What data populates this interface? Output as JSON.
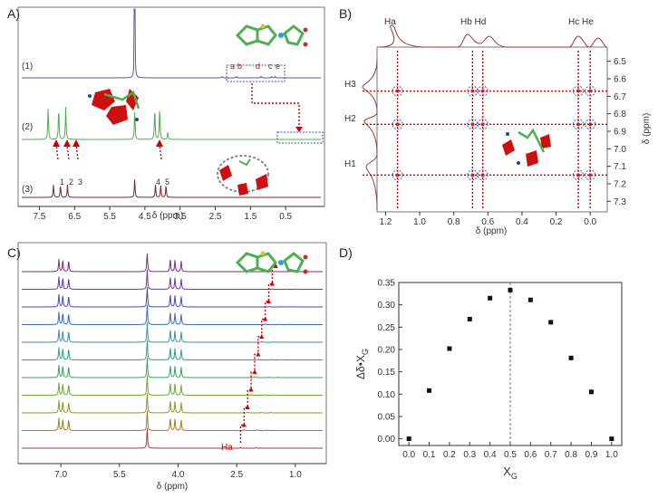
{
  "chart_data": [
    {
      "panel": "A)",
      "type": "line",
      "title": "",
      "xlabel": "δ (ppm)",
      "xlim": [
        8.0,
        -0.5
      ],
      "x_ticks": [
        "7.5",
        "6.5",
        "5.5",
        "4.5",
        "3.5",
        "2.5",
        "1.5",
        "0.5"
      ],
      "x_tick_values": [
        7.5,
        6.5,
        5.5,
        4.5,
        3.5,
        2.5,
        1.5,
        0.5
      ],
      "x_ticks_extra": [
        "7.0",
        "6.0",
        "5.0",
        "4.0",
        "3.0",
        "2.0",
        "1.0",
        "0.0"
      ],
      "spectra": [
        {
          "name": "(1)",
          "color": "#5a5aa0",
          "peaks": [
            {
              "x": 4.79,
              "h": 1.0
            },
            {
              "x": 2.3,
              "h": 0.02
            },
            {
              "x": 1.9,
              "h": 0.02
            },
            {
              "x": 1.2,
              "h": 0.02
            },
            {
              "x": 0.9,
              "h": 0.02
            },
            {
              "x": 0.8,
              "h": 0.02
            }
          ]
        },
        {
          "name": "(2)",
          "color": "#4caf50",
          "peaks": [
            {
              "x": 7.25,
              "h": 0.45
            },
            {
              "x": 6.95,
              "h": 0.45
            },
            {
              "x": 6.75,
              "h": 0.45
            },
            {
              "x": 4.79,
              "h": 0.4
            },
            {
              "x": 4.22,
              "h": 0.45
            },
            {
              "x": 4.08,
              "h": 0.45
            },
            {
              "x": 3.85,
              "h": 0.1
            }
          ]
        },
        {
          "name": "(3)",
          "color": "#7a2a2a",
          "peaks": [
            {
              "x": 7.1,
              "h": 0.2
            },
            {
              "x": 6.9,
              "h": 0.2
            },
            {
              "x": 6.7,
              "h": 0.2
            },
            {
              "x": 4.79,
              "h": 0.3
            },
            {
              "x": 4.2,
              "h": 0.2
            },
            {
              "x": 4.05,
              "h": 0.2
            },
            {
              "x": 3.9,
              "h": 0.2
            }
          ]
        }
      ],
      "annotations": [
        "a",
        "b",
        "d",
        "c",
        "e",
        "1",
        "2",
        "3",
        "4",
        "5"
      ]
    },
    {
      "panel": "B)",
      "type": "heatmap",
      "xlabel": "δ (ppm)",
      "ylabel": "δ (ppm)",
      "xlim": [
        1.25,
        -0.1
      ],
      "ylim": [
        6.45,
        7.35
      ],
      "x_ticks": [
        "1.2",
        "1.0",
        "0.8",
        "0.6",
        "0.4",
        "0.2",
        "0.0"
      ],
      "x_tick_values": [
        1.2,
        1.0,
        0.8,
        0.6,
        0.4,
        0.2,
        0.0
      ],
      "y_ticks": [
        "6.5",
        "6.6",
        "6.7",
        "6.8",
        "6.9",
        "7.0",
        "7.1",
        "7.2",
        "7.3"
      ],
      "y_tick_values": [
        6.5,
        6.6,
        6.7,
        6.8,
        6.9,
        7.0,
        7.1,
        7.2,
        7.3
      ],
      "top_labels": [
        "Ha",
        "Hb Hd",
        "Hc He"
      ],
      "top_label_sub": [
        [
          "a"
        ],
        [
          "b",
          "d"
        ],
        [
          "c",
          "e"
        ]
      ],
      "left_labels": [
        "H3",
        "H2",
        "H1"
      ],
      "cross_peaks_x": [
        1.13,
        0.69,
        0.63,
        0.07,
        0.0
      ],
      "cross_peaks_y": [
        6.67,
        6.86,
        7.15
      ]
    },
    {
      "panel": "C)",
      "type": "line",
      "xlabel": "δ (ppm)",
      "xlim": [
        8.0,
        0.3
      ],
      "x_ticks": [
        "7.0",
        "5.5",
        "4.0",
        "2.5",
        "1.0"
      ],
      "x_tick_values": [
        7.0,
        5.5,
        4.0,
        2.5,
        1.0
      ],
      "n_traces": 11,
      "annotation": "Ha",
      "trace_colors": [
        "#7b2a7b",
        "#6a3a9a",
        "#4a4aa8",
        "#3b6bb8",
        "#3b8ea6",
        "#2f9c8a",
        "#3fa05a",
        "#6aa838",
        "#8a9a2a",
        "#a07a2a",
        "#a83a3a"
      ]
    },
    {
      "panel": "D)",
      "type": "scatter",
      "title": "",
      "xlabel": "X",
      "xlabel_sub": "G",
      "ylabel": "Δδ•X",
      "ylabel_sub": "G",
      "x": [
        0.0,
        0.1,
        0.2,
        0.3,
        0.4,
        0.5,
        0.6,
        0.7,
        0.8,
        0.9,
        1.0
      ],
      "y": [
        0.0,
        0.108,
        0.202,
        0.268,
        0.315,
        0.333,
        0.311,
        0.261,
        0.181,
        0.105,
        0.0
      ],
      "xlim": [
        -0.05,
        1.05
      ],
      "ylim": [
        -0.015,
        0.35
      ],
      "x_ticks": [
        "0.0",
        "0.1",
        "0.2",
        "0.3",
        "0.4",
        "0.5",
        "0.6",
        "0.7",
        "0.8",
        "0.9",
        "1.0"
      ],
      "y_ticks": [
        "0.00",
        "0.05",
        "0.10",
        "0.15",
        "0.20",
        "0.25",
        "0.30",
        "0.35"
      ],
      "y_tick_values": [
        0.0,
        0.05,
        0.1,
        0.15,
        0.2,
        0.25,
        0.3,
        0.35
      ],
      "vline_x": 0.5
    }
  ]
}
